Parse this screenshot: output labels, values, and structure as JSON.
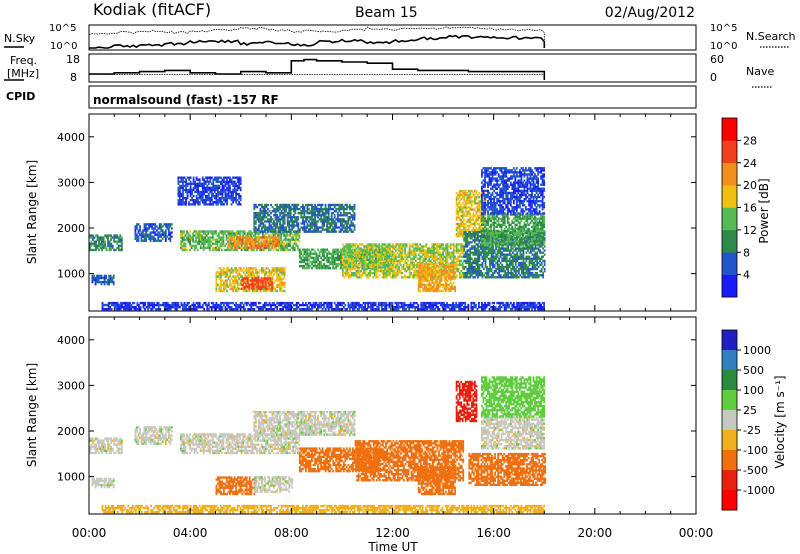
{
  "header": {
    "station": "Kodiak (fitACF)",
    "beam": "Beam 15",
    "date": "02/Aug/2012"
  },
  "panels": {
    "nsky": {
      "label": "N.Sky",
      "right_label": "N.Search",
      "left_ticks": [
        "10^5",
        "10^0"
      ],
      "right_ticks": [
        "10^5",
        "10^0"
      ]
    },
    "freq": {
      "label_line1": "Freq.",
      "label_line2": "[MHz]",
      "right_label": "Nave",
      "left_ticks": [
        "18",
        "8"
      ],
      "right_ticks": [
        "60",
        "0"
      ]
    },
    "cpid": {
      "label": "CPID",
      "text": "normalsound (fast) -157 RF"
    }
  },
  "colorbars": {
    "power": {
      "label": "Power [dB]",
      "ticks": [
        "28",
        "24",
        "20",
        "16",
        "12",
        "8",
        "4"
      ],
      "colors": [
        "#1a1aff",
        "#2255cc",
        "#2f8a4a",
        "#55bb55",
        "#f0c010",
        "#f09020",
        "#f04020",
        "#ff0000"
      ]
    },
    "velocity": {
      "label": "Velocity [m s⁻¹]",
      "ticks": [
        "1000",
        "500",
        "100",
        "25",
        "-25",
        "-100",
        "-500",
        "-1000"
      ],
      "colors": [
        "#2020c0",
        "#3080c0",
        "#2a8a40",
        "#60cc40",
        "#c8c8c0",
        "#f0b020",
        "#f07010",
        "#e82010",
        "#ff0000"
      ]
    }
  },
  "chart_data": [
    {
      "type": "line",
      "title": "N.Sky",
      "x": [
        "00:00",
        "01:00",
        "02:00",
        "03:00",
        "04:00",
        "05:00",
        "06:00",
        "07:00",
        "08:00",
        "09:00",
        "10:00",
        "11:00",
        "12:00",
        "13:00",
        "14:00",
        "15:00",
        "16:00",
        "17:00",
        "18:00"
      ],
      "series": [
        {
          "name": "N.Sky",
          "values": [
            1,
            3,
            5,
            10,
            30,
            40,
            10,
            20,
            5,
            30,
            60,
            20,
            50,
            200,
            500,
            400,
            300,
            200,
            30
          ]
        },
        {
          "name": "N.Search",
          "values": [
            2000,
            5000,
            8000,
            5000,
            10000,
            20000,
            50000,
            20000,
            10000,
            8000,
            20000,
            50000,
            30000,
            40000,
            60000,
            50000,
            30000,
            20000,
            5000
          ]
        }
      ],
      "yscale": "log",
      "ylim": [
        1,
        100000
      ]
    },
    {
      "type": "line",
      "title": "Freq. [MHz] / Nave",
      "x": [
        "00:00",
        "01:00",
        "02:00",
        "03:00",
        "04:00",
        "05:00",
        "06:00",
        "07:00",
        "08:00",
        "08:30",
        "09:00",
        "10:00",
        "11:00",
        "12:00",
        "13:00",
        "14:00",
        "15:00",
        "16:00",
        "17:00",
        "18:00"
      ],
      "series": [
        {
          "name": "Freq.",
          "values": [
            10.5,
            11.0,
            11.5,
            12.0,
            11.0,
            10.5,
            11.5,
            11.0,
            16.0,
            16.5,
            16.0,
            15.5,
            15.0,
            12.5,
            12.0,
            12.0,
            11.5,
            11.5,
            11.5,
            11.5
          ]
        },
        {
          "name": "Nave",
          "values": [
            14,
            14,
            14,
            14,
            14,
            14,
            14,
            14,
            14,
            14,
            14,
            14,
            14,
            14,
            14,
            14,
            14,
            14,
            14,
            14
          ]
        }
      ],
      "ylim": [
        8,
        18
      ]
    },
    {
      "type": "heatmap",
      "title": "Power",
      "xlabel": "Time UT",
      "ylabel": "Slant Range [km]",
      "xticks": [
        "00:00",
        "04:00",
        "08:00",
        "12:00",
        "16:00",
        "20:00",
        "00:00"
      ],
      "yticks": [
        1000,
        2000,
        3000,
        4000
      ],
      "xlim_hours": [
        0,
        24
      ],
      "ylim": [
        180,
        4500
      ],
      "bands": [
        {
          "t0": 0.0,
          "t1": 1.3,
          "r0": 1500,
          "r1": 1850,
          "value": 10
        },
        {
          "t0": 0.1,
          "t1": 1.0,
          "r0": 750,
          "r1": 950,
          "value": 6
        },
        {
          "t0": 1.8,
          "t1": 3.3,
          "r0": 1700,
          "r1": 2100,
          "value": 6
        },
        {
          "t0": 3.6,
          "t1": 8.3,
          "r0": 1500,
          "r1": 1950,
          "value": 14
        },
        {
          "t0": 5.5,
          "t1": 7.5,
          "r0": 1550,
          "r1": 1800,
          "value": 22
        },
        {
          "t0": 5.0,
          "t1": 7.7,
          "r0": 600,
          "r1": 1100,
          "value": 18
        },
        {
          "t0": 6.0,
          "t1": 7.2,
          "r0": 650,
          "r1": 900,
          "value": 25
        },
        {
          "t0": 3.5,
          "t1": 6.0,
          "r0": 2500,
          "r1": 3100,
          "value": 5
        },
        {
          "t0": 6.5,
          "t1": 10.5,
          "r0": 1900,
          "r1": 2500,
          "value": 8
        },
        {
          "t0": 8.3,
          "t1": 12.0,
          "r0": 1100,
          "r1": 1550,
          "value": 12
        },
        {
          "t0": 10.0,
          "t1": 14.8,
          "r0": 900,
          "r1": 1650,
          "value": 16
        },
        {
          "t0": 13.0,
          "t1": 14.5,
          "r0": 600,
          "r1": 1200,
          "value": 21
        },
        {
          "t0": 14.5,
          "t1": 15.7,
          "r0": 1800,
          "r1": 2800,
          "value": 18
        },
        {
          "t0": 14.8,
          "t1": 18.0,
          "r0": 900,
          "r1": 1900,
          "value": 9
        },
        {
          "t0": 15.5,
          "t1": 18.0,
          "r0": 1600,
          "r1": 2300,
          "value": 12
        },
        {
          "t0": 15.5,
          "t1": 18.0,
          "r0": 2300,
          "r1": 3300,
          "value": 5
        },
        {
          "t0": 0.5,
          "t1": 18.0,
          "r0": 200,
          "r1": 350,
          "value": 4
        }
      ]
    },
    {
      "type": "heatmap",
      "title": "Velocity",
      "xlabel": "Time UT",
      "ylabel": "Slant Range [km]",
      "xticks": [
        "00:00",
        "04:00",
        "08:00",
        "12:00",
        "16:00",
        "20:00",
        "00:00"
      ],
      "yticks": [
        1000,
        2000,
        3000,
        4000
      ],
      "xlim_hours": [
        0,
        24
      ],
      "ylim": [
        180,
        4500
      ],
      "bands": [
        {
          "t0": 0.0,
          "t1": 1.3,
          "r0": 1500,
          "r1": 1850,
          "value": 0
        },
        {
          "t0": 0.1,
          "t1": 1.0,
          "r0": 750,
          "r1": 950,
          "value": 0
        },
        {
          "t0": 1.8,
          "t1": 3.3,
          "r0": 1700,
          "r1": 2100,
          "value": 0
        },
        {
          "t0": 3.6,
          "t1": 8.3,
          "r0": 1500,
          "r1": 1950,
          "value": 0
        },
        {
          "t0": 5.0,
          "t1": 6.5,
          "r0": 600,
          "r1": 1000,
          "value": -150
        },
        {
          "t0": 6.5,
          "t1": 8.0,
          "r0": 650,
          "r1": 1000,
          "value": 0
        },
        {
          "t0": 6.5,
          "t1": 10.5,
          "r0": 1900,
          "r1": 2400,
          "value": 0
        },
        {
          "t0": 8.3,
          "t1": 11.5,
          "r0": 1100,
          "r1": 1600,
          "value": -150
        },
        {
          "t0": 10.5,
          "t1": 14.8,
          "r0": 900,
          "r1": 1800,
          "value": -200
        },
        {
          "t0": 13.0,
          "t1": 14.5,
          "r0": 600,
          "r1": 1200,
          "value": -300
        },
        {
          "t0": 14.5,
          "t1": 15.3,
          "r0": 2200,
          "r1": 3100,
          "value": -700
        },
        {
          "t0": 15.0,
          "t1": 18.0,
          "r0": 800,
          "r1": 1500,
          "value": -150
        },
        {
          "t0": 15.5,
          "t1": 18.0,
          "r0": 1600,
          "r1": 2300,
          "value": 0
        },
        {
          "t0": 15.5,
          "t1": 18.0,
          "r0": 2300,
          "r1": 3200,
          "value": 60
        },
        {
          "t0": 0.5,
          "t1": 18.0,
          "r0": 200,
          "r1": 350,
          "value": -60
        }
      ]
    }
  ]
}
